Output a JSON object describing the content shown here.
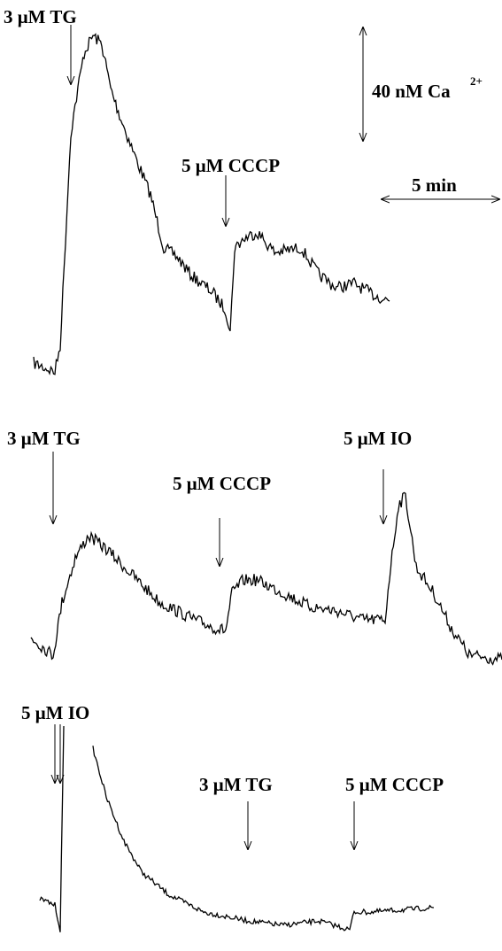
{
  "panels": [
    {
      "labels": [
        "3 μM TG",
        "5 μM CCCP"
      ],
      "calibration": {
        "amplitude": "40 nM Ca",
        "amplitude_superscript": "2+",
        "time": "5 min"
      }
    },
    {
      "labels": [
        "3 μM TG",
        "5 μM CCCP",
        "5 μM IO"
      ]
    },
    {
      "labels": [
        "5 μM IO",
        "3 μM TG",
        "5 μM CCCP"
      ]
    }
  ]
}
